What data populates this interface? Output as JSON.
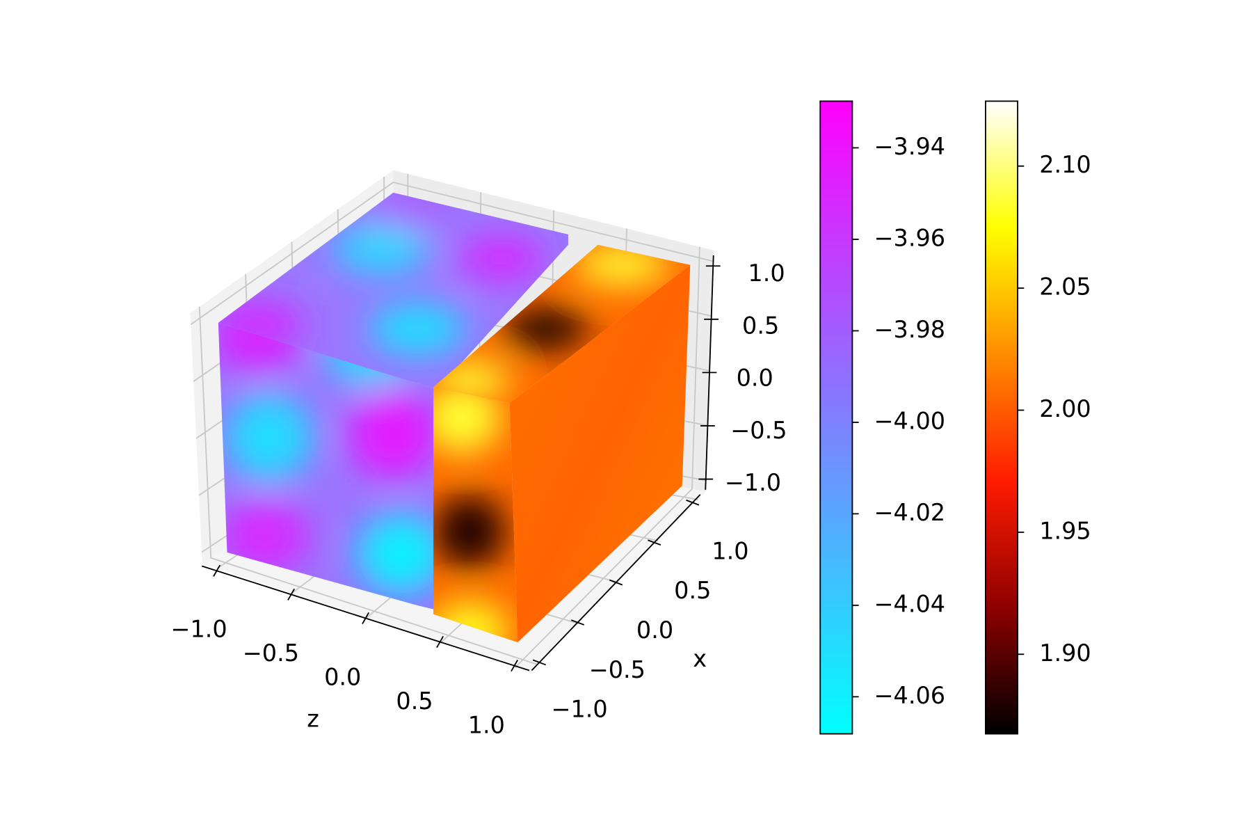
{
  "chart_data": {
    "type": "voxel3d",
    "axes": [
      {
        "label": "z",
        "lim": [
          -1.1,
          1.1
        ],
        "ticks": [
          {
            "value": -1.0,
            "label": "−1.0"
          },
          {
            "value": -0.5,
            "label": "−0.5"
          },
          {
            "value": 0.0,
            "label": "0.0"
          },
          {
            "value": 0.5,
            "label": "0.5"
          },
          {
            "value": 1.0,
            "label": "1.0"
          }
        ]
      },
      {
        "label": "x",
        "lim": [
          -1.1,
          1.1
        ],
        "ticks": [
          {
            "value": -1.0,
            "label": "−1.0"
          },
          {
            "value": -0.5,
            "label": "−0.5"
          },
          {
            "value": 0.0,
            "label": "0.0"
          },
          {
            "value": 0.5,
            "label": "0.5"
          },
          {
            "value": 1.0,
            "label": "1.0"
          }
        ]
      },
      {
        "lim": [
          -1.1,
          1.1
        ],
        "ticks": [
          {
            "value": -1.0,
            "label": "−1.0"
          },
          {
            "value": -0.5,
            "label": "−0.5"
          },
          {
            "value": 0.0,
            "label": "0.0"
          },
          {
            "value": 0.5,
            "label": "0.5"
          },
          {
            "value": 1.0,
            "label": "1.0"
          }
        ]
      }
    ],
    "grid": true,
    "colorbars": [
      {
        "colors": [
          "#00ffff",
          "#ff00ff"
        ],
        "lim": [
          -4.0681,
          -3.9298
        ],
        "ticks": [
          {
            "value": -4.06,
            "label": "−4.06"
          },
          {
            "value": -4.04,
            "label": "−4.04"
          },
          {
            "value": -4.02,
            "label": "−4.02"
          },
          {
            "value": -4.0,
            "label": "−4.00"
          },
          {
            "value": -3.98,
            "label": "−3.98"
          },
          {
            "value": -3.96,
            "label": "−3.96"
          },
          {
            "value": -3.94,
            "label": "−3.94"
          }
        ]
      },
      {
        "colors": [
          "#000000",
          "#8e0000",
          "#ff1c00",
          "#ff8d00",
          "#ffff00",
          "#ffffff"
        ],
        "lim": [
          1.8674,
          2.1266
        ],
        "ticks": [
          {
            "value": 1.9,
            "label": "1.90"
          },
          {
            "value": 1.95,
            "label": "1.95"
          },
          {
            "value": 2.0,
            "label": "2.00"
          },
          {
            "value": 2.05,
            "label": "2.05"
          },
          {
            "value": 2.1,
            "label": "2.10"
          }
        ]
      }
    ]
  }
}
